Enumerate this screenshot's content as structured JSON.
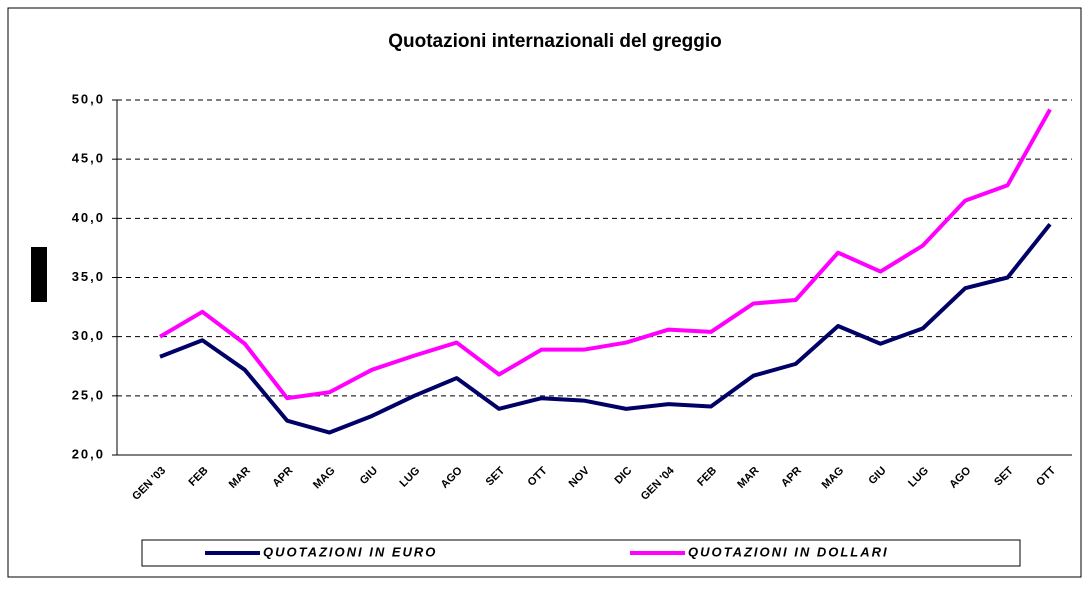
{
  "chart_data": {
    "type": "line",
    "title": "Quotazioni internazionali del greggio",
    "categories": [
      "GEN '03",
      "FEB",
      "MAR",
      "APR",
      "MAG",
      "GIU",
      "LUG",
      "AGO",
      "SET",
      "OTT",
      "NOV",
      "DIC",
      "GEN '04",
      "FEB",
      "MAR",
      "APR",
      "MAG",
      "GIU",
      "LUG",
      "AGO",
      "SET",
      "OTT"
    ],
    "series": [
      {
        "name": "QUOTAZIONI IN EURO",
        "color": "#000066",
        "values": [
          28.3,
          29.7,
          27.2,
          22.9,
          21.9,
          23.3,
          25.0,
          26.5,
          23.9,
          24.8,
          24.6,
          23.9,
          24.3,
          24.1,
          26.7,
          27.7,
          30.9,
          29.4,
          30.7,
          34.1,
          35.0,
          39.5
        ]
      },
      {
        "name": "QUOTAZIONI IN DOLLARI",
        "color": "#ff00ff",
        "values": [
          30.0,
          32.1,
          29.4,
          24.8,
          25.3,
          27.2,
          28.4,
          29.5,
          26.8,
          28.9,
          28.9,
          29.5,
          30.6,
          30.4,
          32.8,
          33.1,
          37.1,
          35.5,
          37.7,
          41.5,
          42.8,
          49.2
        ]
      }
    ],
    "ylim": [
      20,
      50
    ],
    "yticks": [
      {
        "value": 20,
        "label": "20,0"
      },
      {
        "value": 25,
        "label": "25,0"
      },
      {
        "value": 30,
        "label": "30,0"
      },
      {
        "value": 35,
        "label": "35,0"
      },
      {
        "value": 40,
        "label": "40,0"
      },
      {
        "value": 45,
        "label": "45,0"
      },
      {
        "value": 50,
        "label": "50,0"
      }
    ],
    "grid": true,
    "legend": "bottom"
  }
}
